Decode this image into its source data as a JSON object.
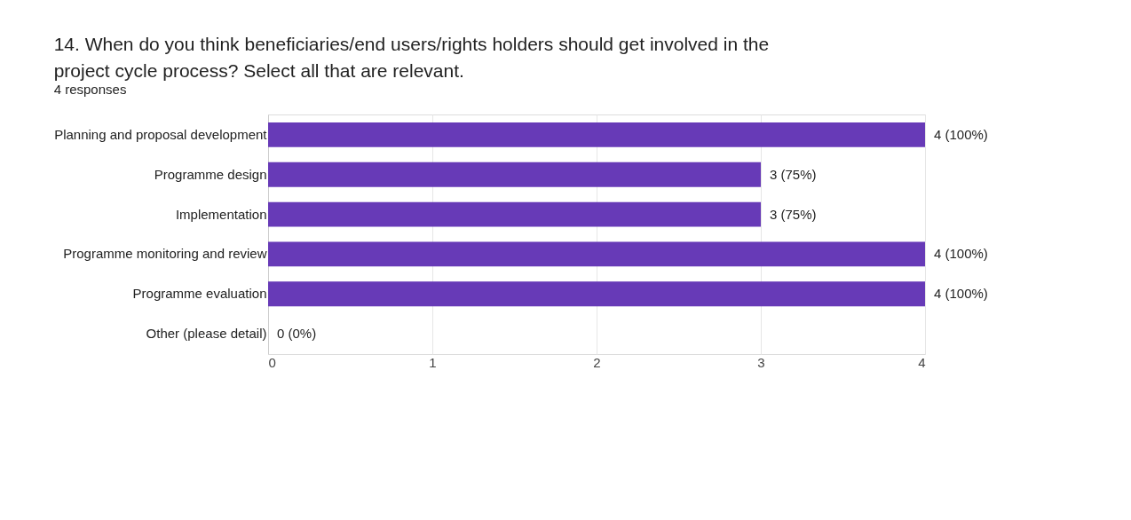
{
  "chart_data": {
    "type": "bar",
    "orientation": "horizontal",
    "title": "14. When do you think beneficiaries/end users/rights holders should get involved in the project cycle process? Select all that are relevant.",
    "subtitle": "4 responses",
    "categories": [
      "Planning and proposal development",
      "Programme design",
      "Implementation",
      "Programme monitoring and review",
      "Programme evaluation",
      "Other (please detail)"
    ],
    "values": [
      4,
      3,
      3,
      4,
      4,
      0
    ],
    "value_labels": [
      "4 (100%)",
      "3 (75%)",
      "3 (75%)",
      "4 (100%)",
      "4 (100%)",
      "0 (0%)"
    ],
    "color": "#673ab7",
    "xlim": [
      0,
      4
    ],
    "xticks": [
      0,
      1,
      2,
      3,
      4
    ],
    "grid": "x"
  }
}
